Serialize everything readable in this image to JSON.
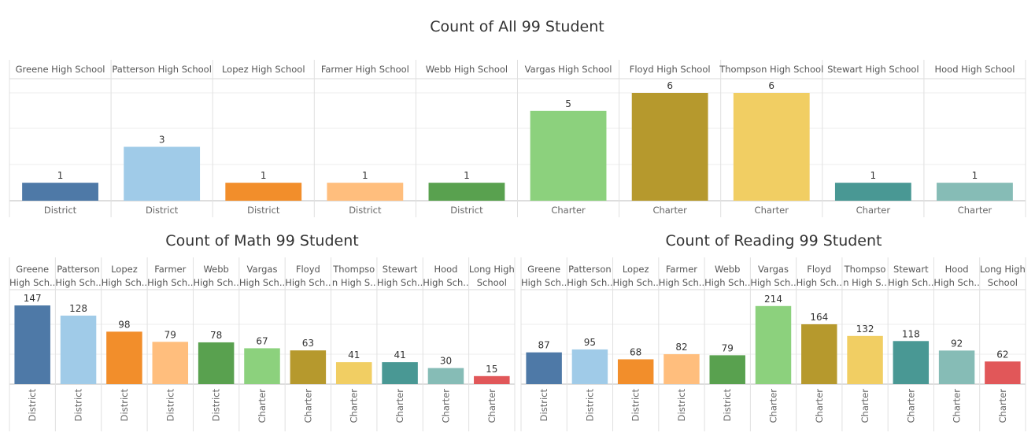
{
  "chart_data": [
    {
      "type": "bar",
      "title": "Count of All 99 Student",
      "categories": [
        "Greene High School",
        "Patterson High School",
        "Lopez High School",
        "Farmer High School",
        "Webb High School",
        "Vargas High School",
        "Floyd High School",
        "Thompson High School",
        "Stewart High School",
        "Hood High School"
      ],
      "category_lines": [
        [
          "Greene High School"
        ],
        [
          "Patterson High School"
        ],
        [
          "Lopez High School"
        ],
        [
          "Farmer High School"
        ],
        [
          "Webb High School"
        ],
        [
          "Vargas High School"
        ],
        [
          "Floyd High School"
        ],
        [
          "Thompson High School"
        ],
        [
          "Stewart High School"
        ],
        [
          "Hood High School"
        ]
      ],
      "types": [
        "District",
        "District",
        "District",
        "District",
        "District",
        "Charter",
        "Charter",
        "Charter",
        "Charter",
        "Charter"
      ],
      "values": [
        1,
        3,
        1,
        1,
        1,
        5,
        6,
        6,
        1,
        1
      ],
      "colors": [
        "#4e79a7",
        "#a0cbe8",
        "#f28e2b",
        "#ffbe7d",
        "#59a14f",
        "#8cd17d",
        "#b6992d",
        "#f1ce63",
        "#499894",
        "#86bcb6"
      ],
      "ylim": [
        0,
        6
      ],
      "grid": true
    },
    {
      "type": "bar",
      "title": "Count of Math 99 Student",
      "categories": [
        "Greene High School",
        "Patterson High School",
        "Lopez High School",
        "Farmer High School",
        "Webb High School",
        "Vargas High School",
        "Floyd High School",
        "Thompson High School",
        "Stewart High School",
        "Hood High School",
        "Long High School"
      ],
      "category_lines": [
        [
          "Greene",
          "High Sch.."
        ],
        [
          "Patterson",
          "High Sch.."
        ],
        [
          "Lopez",
          "High Sch.."
        ],
        [
          "Farmer",
          "High Sch.."
        ],
        [
          "Webb",
          "High Sch.."
        ],
        [
          "Vargas",
          "High Sch.."
        ],
        [
          "Floyd",
          "High Sch.."
        ],
        [
          "Thompso",
          "n High S.."
        ],
        [
          "Stewart",
          "High Sch.."
        ],
        [
          "Hood",
          "High Sch.."
        ],
        [
          "Long High",
          "School"
        ]
      ],
      "types": [
        "District",
        "District",
        "District",
        "District",
        "District",
        "Charter",
        "Charter",
        "Charter",
        "Charter",
        "Charter",
        "Charter"
      ],
      "values": [
        147,
        128,
        98,
        79,
        78,
        67,
        63,
        41,
        41,
        30,
        15
      ],
      "colors": [
        "#4e79a7",
        "#a0cbe8",
        "#f28e2b",
        "#ffbe7d",
        "#59a14f",
        "#8cd17d",
        "#b6992d",
        "#f1ce63",
        "#499894",
        "#86bcb6",
        "#e15759"
      ],
      "ylim": [
        0,
        150
      ],
      "grid": true
    },
    {
      "type": "bar",
      "title": "Count of Reading 99 Student",
      "categories": [
        "Greene High School",
        "Patterson High School",
        "Lopez High School",
        "Farmer High School",
        "Webb High School",
        "Vargas High School",
        "Floyd High School",
        "Thompson High School",
        "Stewart High School",
        "Hood High School",
        "Long High School"
      ],
      "category_lines": [
        [
          "Greene",
          "High Sch.."
        ],
        [
          "Patterson",
          "High Sch.."
        ],
        [
          "Lopez",
          "High Sch.."
        ],
        [
          "Farmer",
          "High Sch.."
        ],
        [
          "Webb",
          "High Sch.."
        ],
        [
          "Vargas",
          "High Sch.."
        ],
        [
          "Floyd",
          "High Sch.."
        ],
        [
          "Thompso",
          "n High S.."
        ],
        [
          "Stewart",
          "High Sch.."
        ],
        [
          "Hood",
          "High Sch.."
        ],
        [
          "Long High",
          "School"
        ]
      ],
      "types": [
        "District",
        "District",
        "District",
        "District",
        "District",
        "Charter",
        "Charter",
        "Charter",
        "Charter",
        "Charter",
        "Charter"
      ],
      "values": [
        87,
        95,
        68,
        82,
        79,
        214,
        164,
        132,
        118,
        92,
        62
      ],
      "colors": [
        "#4e79a7",
        "#a0cbe8",
        "#f28e2b",
        "#ffbe7d",
        "#59a14f",
        "#8cd17d",
        "#b6992d",
        "#f1ce63",
        "#499894",
        "#86bcb6",
        "#e15759"
      ],
      "ylim": [
        0,
        220
      ],
      "grid": true
    }
  ]
}
